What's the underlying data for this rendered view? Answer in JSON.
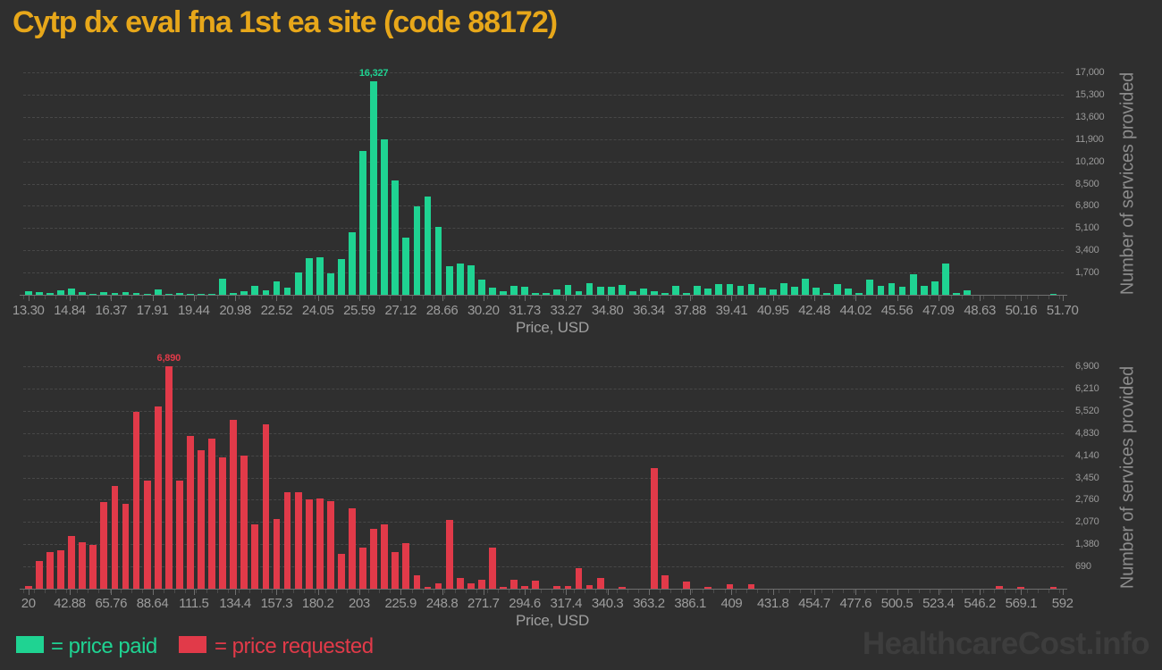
{
  "title": "Cytp dx eval fna 1st ea site (code 88172)",
  "watermark": "HealthcareCost.info",
  "legend": {
    "paid_label": "= price paid",
    "requested_label": "= price requested"
  },
  "colors": {
    "background": "#2f2f2f",
    "title": "#e7a71a",
    "paid": "#1fd392",
    "requested": "#e13a49",
    "axis_text": "#9c9c9c",
    "watermark": "#3d3d3d"
  },
  "chart_data": [
    {
      "type": "bar",
      "name": "price-paid-histogram",
      "series_label": "price paid",
      "color_key": "paid",
      "xlabel": "Price, USD",
      "ylabel": "Number of services provided",
      "x_range": [
        13.3,
        51.7
      ],
      "bin_width": 0.4,
      "ylim": [
        0,
        17000
      ],
      "grid": true,
      "x_ticks": [
        "13.30",
        "14.84",
        "16.37",
        "17.91",
        "19.44",
        "20.98",
        "22.52",
        "24.05",
        "25.59",
        "27.12",
        "28.66",
        "30.20",
        "31.73",
        "33.27",
        "34.80",
        "36.34",
        "37.88",
        "39.41",
        "40.95",
        "42.48",
        "44.02",
        "45.56",
        "47.09",
        "48.63",
        "50.16",
        "51.70"
      ],
      "y_ticks": [
        "1,700",
        "3,400",
        "5,100",
        "6,800",
        "8,500",
        "10,200",
        "11,900",
        "13,600",
        "15,300",
        "17,000"
      ],
      "peak_annotation": {
        "text": "16,327",
        "bar_index": 32
      },
      "values": [
        250,
        200,
        130,
        330,
        470,
        200,
        60,
        200,
        130,
        200,
        130,
        60,
        420,
        100,
        110,
        90,
        60,
        100,
        1200,
        150,
        250,
        670,
        350,
        1000,
        540,
        1680,
        2800,
        2890,
        1630,
        2730,
        4770,
        11000,
        16327,
        11900,
        8740,
        4370,
        6790,
        7510,
        5220,
        2200,
        2420,
        2260,
        1130,
        560,
        290,
        670,
        600,
        130,
        130,
        400,
        740,
        250,
        870,
        600,
        600,
        780,
        250,
        450,
        250,
        130,
        670,
        130,
        670,
        470,
        800,
        800,
        670,
        800,
        540,
        400,
        870,
        600,
        1200,
        540,
        130,
        830,
        450,
        130,
        1130,
        700,
        900,
        600,
        1560,
        700,
        1000,
        2400,
        130,
        340,
        0,
        0,
        0,
        0,
        0,
        0,
        0,
        100
      ]
    },
    {
      "type": "bar",
      "name": "price-requested-histogram",
      "series_label": "price requested",
      "color_key": "requested",
      "xlabel": "Price, USD",
      "ylabel": "Number of services provided",
      "x_range": [
        20,
        592
      ],
      "bin_width": 5.96,
      "ylim": [
        0,
        6900
      ],
      "grid": true,
      "x_ticks": [
        "20",
        "42.88",
        "65.76",
        "88.64",
        "111.5",
        "134.4",
        "157.3",
        "180.2",
        "203",
        "225.9",
        "248.8",
        "271.7",
        "294.6",
        "317.4",
        "340.3",
        "363.2",
        "386.1",
        "409",
        "431.8",
        "454.7",
        "477.6",
        "500.5",
        "523.4",
        "546.2",
        "569.1",
        "592"
      ],
      "y_ticks": [
        "690",
        "1,380",
        "2,070",
        "2,760",
        "3,450",
        "4,140",
        "4,830",
        "5,520",
        "6,210",
        "6,900"
      ],
      "peak_annotation": {
        "text": "6,890",
        "bar_index": 13
      },
      "values": [
        70,
        860,
        1130,
        1180,
        1630,
        1440,
        1360,
        2700,
        3200,
        2630,
        5500,
        3340,
        5650,
        6890,
        3340,
        4750,
        4300,
        4660,
        4070,
        5250,
        4120,
        1990,
        5100,
        2170,
        2990,
        2990,
        2770,
        2800,
        2720,
        1090,
        2490,
        1270,
        1850,
        1990,
        1130,
        1400,
        410,
        60,
        180,
        2130,
        320,
        160,
        270,
        1270,
        50,
        270,
        70,
        250,
        0,
        70,
        90,
        630,
        110,
        320,
        0,
        45,
        0,
        0,
        3750,
        410,
        0,
        230,
        0,
        45,
        0,
        135,
        0,
        135,
        0,
        0,
        0,
        0,
        0,
        0,
        0,
        0,
        0,
        0,
        0,
        0,
        0,
        0,
        0,
        0,
        0,
        0,
        0,
        0,
        0,
        0,
        90,
        0,
        45,
        0,
        0,
        45
      ]
    }
  ]
}
